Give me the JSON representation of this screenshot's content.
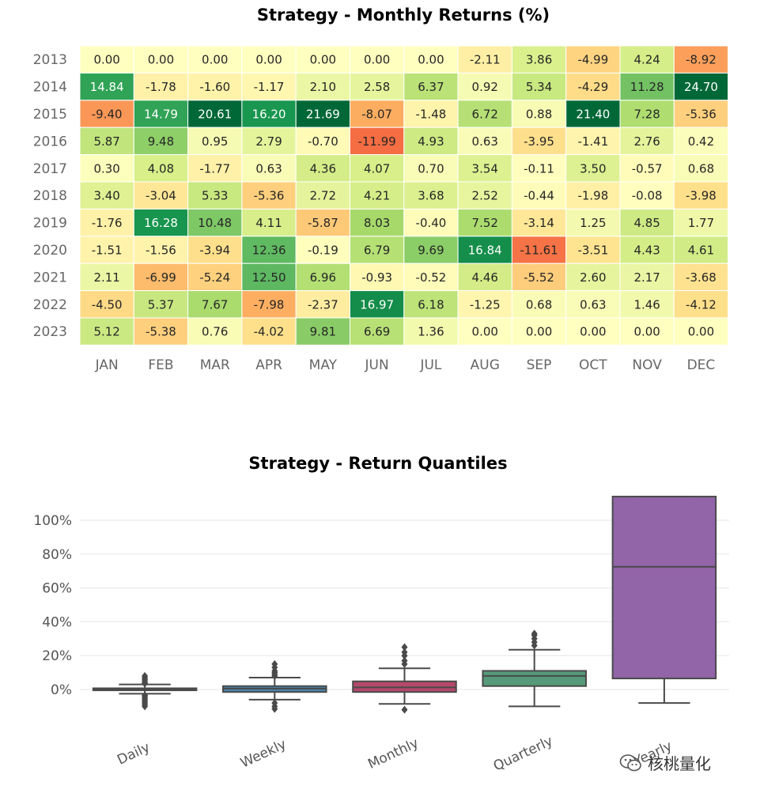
{
  "chart_data": [
    {
      "type": "heatmap",
      "title": "Strategy - Monthly Returns (%)",
      "rows": [
        "2013",
        "2014",
        "2015",
        "2016",
        "2017",
        "2018",
        "2019",
        "2020",
        "2021",
        "2022",
        "2023"
      ],
      "columns": [
        "JAN",
        "FEB",
        "MAR",
        "APR",
        "MAY",
        "JUN",
        "JUL",
        "AUG",
        "SEP",
        "OCT",
        "NOV",
        "DEC"
      ],
      "values": [
        [
          "0.00",
          "0.00",
          "0.00",
          "0.00",
          "0.00",
          "0.00",
          "0.00",
          "-2.11",
          "3.86",
          "-4.99",
          "4.24",
          "-8.92"
        ],
        [
          "14.84",
          "-1.78",
          "-1.60",
          "-1.17",
          "2.10",
          "2.58",
          "6.37",
          "0.92",
          "5.34",
          "-4.29",
          "11.28",
          "24.70"
        ],
        [
          "-9.40",
          "14.79",
          "20.61",
          "16.20",
          "21.69",
          "-8.07",
          "-1.48",
          "6.72",
          "0.88",
          "21.40",
          "7.28",
          "-5.36"
        ],
        [
          "5.87",
          "9.48",
          "0.95",
          "2.79",
          "-0.70",
          "-11.99",
          "4.93",
          "0.63",
          "-3.95",
          "-1.41",
          "2.76",
          "0.42"
        ],
        [
          "0.30",
          "4.08",
          "-1.77",
          "0.63",
          "4.36",
          "4.07",
          "0.70",
          "3.54",
          "-0.11",
          "3.50",
          "-0.57",
          "0.68"
        ],
        [
          "3.40",
          "-3.04",
          "5.33",
          "-5.36",
          "2.72",
          "4.21",
          "3.68",
          "2.52",
          "-0.44",
          "-1.98",
          "-0.08",
          "-3.98"
        ],
        [
          "-1.76",
          "16.28",
          "10.48",
          "4.11",
          "-5.87",
          "8.03",
          "-0.40",
          "7.52",
          "-3.14",
          "1.25",
          "4.85",
          "1.77"
        ],
        [
          "-1.51",
          "-1.56",
          "-3.94",
          "12.36",
          "-0.19",
          "6.79",
          "9.69",
          "16.84",
          "-11.61",
          "-3.51",
          "4.43",
          "4.61"
        ],
        [
          "2.11",
          "-6.99",
          "-5.24",
          "12.50",
          "6.96",
          "-0.93",
          "-0.52",
          "4.46",
          "-5.52",
          "2.60",
          "2.17",
          "-3.68"
        ],
        [
          "-4.50",
          "5.37",
          "7.67",
          "-7.98",
          "-2.37",
          "16.97",
          "6.18",
          "-1.25",
          "0.68",
          "0.63",
          "1.46",
          "-4.12"
        ],
        [
          "5.12",
          "-5.38",
          "0.76",
          "-4.02",
          "9.81",
          "6.69",
          "1.36",
          "0.00",
          "0.00",
          "0.00",
          "0.00",
          "0.00"
        ]
      ],
      "colormap": "RdYlGn",
      "color_range": [
        -20,
        20
      ]
    },
    {
      "type": "box",
      "title": "Strategy - Return Quantiles",
      "yunit": "%",
      "ylim": [
        -14,
        117
      ],
      "yticks": [
        0,
        20,
        40,
        60,
        80,
        100
      ],
      "ytick_labels": [
        "0%",
        "20%",
        "40%",
        "60%",
        "80%",
        "100%"
      ],
      "grid": true,
      "series": [
        {
          "name": "Daily",
          "color": "#4c4c4c",
          "whisker_low": -2.5,
          "q1": -0.5,
          "median": 0.1,
          "q3": 0.7,
          "whisker_high": 3,
          "outliers": [
            -10,
            -9,
            -8,
            -7,
            -6,
            -5,
            -4,
            -3.5,
            3.5,
            4,
            5,
            6,
            7,
            8
          ]
        },
        {
          "name": "Weekly",
          "color": "#4a83a8",
          "whisker_low": -6,
          "q1": -1.5,
          "median": 0.5,
          "q3": 2,
          "whisker_high": 7,
          "outliers": [
            -11.5,
            -10,
            -8,
            8,
            9,
            10,
            11,
            13,
            15
          ]
        },
        {
          "name": "Monthly",
          "color": "#b5486b",
          "whisker_low": -8.5,
          "q1": -1.5,
          "median": 1.2,
          "q3": 4.8,
          "whisker_high": 12.5,
          "outliers": [
            -12,
            15,
            17,
            20,
            22,
            25
          ]
        },
        {
          "name": "Quarterly",
          "color": "#569a7a",
          "whisker_low": -10,
          "q1": 2,
          "median": 8,
          "q3": 11,
          "whisker_high": 23.5,
          "outliers": [
            26,
            28,
            30,
            32,
            33
          ]
        },
        {
          "name": "Yearly",
          "color": "#9264a8",
          "whisker_low": -8,
          "q1": 6.5,
          "median": 72.5,
          "q3": 114,
          "whisker_high": 114,
          "outliers": []
        }
      ]
    }
  ],
  "watermark": {
    "text": "核桃量化",
    "icon": "wechat-icon"
  }
}
